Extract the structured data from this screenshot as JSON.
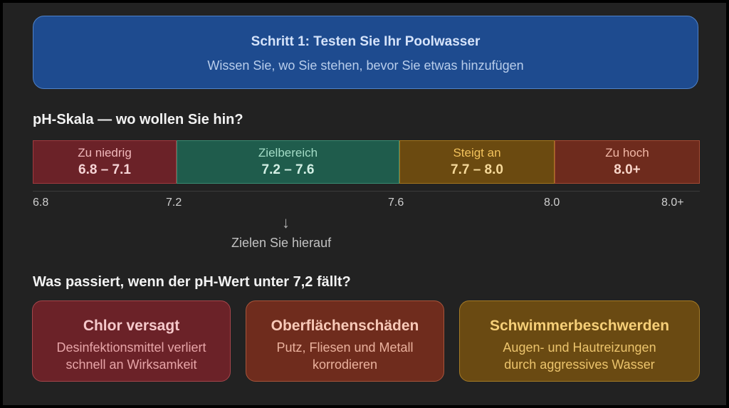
{
  "header": {
    "title": "Schritt 1: Testen Sie Ihr Poolwasser",
    "subtitle": "Wissen Sie, wo Sie stehen, bevor Sie etwas hinzufügen"
  },
  "scale_section": {
    "title": "pH-Skala — wo wollen Sie hin?",
    "segments": [
      {
        "name": "Zu niedrig",
        "range": "6.8 – 7.1",
        "color": "#6b2228"
      },
      {
        "name": "Zielbereich",
        "range": "7.2 – 7.6",
        "color": "#1f5c4c"
      },
      {
        "name": "Steigt an",
        "range": "7.7 – 8.0",
        "color": "#6b4a10"
      },
      {
        "name": "Zu hoch",
        "range": "8.0+",
        "color": "#6e2b1d"
      }
    ],
    "ticks": [
      "6.8",
      "7.2",
      "7.6",
      "8.0",
      "8.0+"
    ],
    "target_arrow": "↓",
    "target_label": "Zielen Sie hierauf"
  },
  "effects_section": {
    "title": "Was passiert, wenn der pH-Wert unter 7,2 fällt?",
    "cards": [
      {
        "title": "Chlor versagt",
        "line1": "Desinfektionsmittel verliert",
        "line2": "schnell an Wirksamkeit",
        "color": "#6b2228"
      },
      {
        "title": "Oberflächenschäden",
        "line1": "Putz, Fliesen und Metall",
        "line2": "korrodieren",
        "color": "#6f2c1d"
      },
      {
        "title": "Schwimmerbeschwerden",
        "line1": "Augen- und Hautreizungen",
        "line2": "durch aggressives Wasser",
        "color": "#6a4a12"
      }
    ]
  }
}
